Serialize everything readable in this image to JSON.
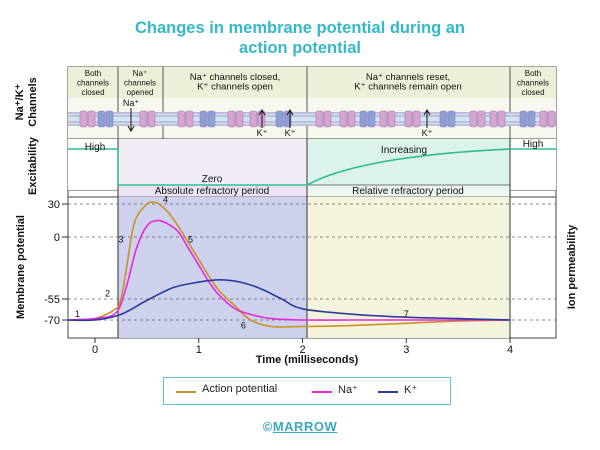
{
  "title": {
    "line1": "Changes in membrane potential during an",
    "line2": "action potential"
  },
  "rows": {
    "channels_label_1": "Na⁺/K⁺",
    "channels_label_2": "Channels",
    "excitability_label": "Excitability",
    "membrane_label": "Membrane potential",
    "ion_perm_label": "Ion permeability"
  },
  "channel_phases": [
    {
      "lines": [
        "Both",
        "channels",
        "closed"
      ]
    },
    {
      "lines": [
        "Na⁺",
        "channels",
        "opened"
      ]
    },
    {
      "lines": [
        "Na⁺ channels closed,",
        "K⁺ channels open"
      ]
    },
    {
      "lines": [
        "Na⁺ channels reset,",
        "K⁺ channels remain open"
      ]
    },
    {
      "lines": [
        "Both",
        "channels",
        "closed"
      ]
    }
  ],
  "ion_labels": {
    "na": "Na⁺",
    "k": "K⁺"
  },
  "excitability": {
    "high_left": "High",
    "zero": "Zero",
    "increasing": "Increasing",
    "high_right": "High",
    "absolute": "Absolute refractory period",
    "relative": "Relative refractory period"
  },
  "colors": {
    "title": "#35b8c9",
    "action_potential": "#c8922a",
    "na": "#e62ad8",
    "k": "#2e3b9c",
    "excitability_line": "#2fbf8f",
    "absolute_fill": "#cfd2ee",
    "relative_fill": "#f3f3dc",
    "excitability_high": "#ffffff",
    "excitability_zero_fill": "#f2ecf7",
    "excitability_incr_fill": "#ddf3ee",
    "channel_band": "#e9f1d4"
  },
  "chart_data": {
    "type": "line",
    "xlabel": "Time (milliseconds)",
    "x_ticks": [
      0,
      1,
      2,
      3,
      4
    ],
    "y_ticks": [
      30,
      0,
      -55,
      -70
    ],
    "xlim": [
      -0.25,
      4.45
    ],
    "ylim": [
      -82,
      38
    ],
    "series": [
      {
        "name": "Action potential",
        "x": [
          -0.3,
          0.0,
          0.2,
          0.25,
          0.3,
          0.35,
          0.4,
          0.5,
          0.55,
          0.6,
          0.7,
          0.8,
          0.9,
          1.0,
          1.1,
          1.2,
          1.35,
          1.5,
          1.7,
          2.0,
          2.5,
          3.0,
          3.5,
          4.0
        ],
        "y": [
          -70,
          -69,
          -62,
          -55,
          -30,
          0,
          18,
          30,
          32,
          31,
          23,
          10,
          -5,
          -20,
          -35,
          -48,
          -60,
          -70,
          -76,
          -76,
          -75,
          -73,
          -71,
          -70
        ]
      },
      {
        "name": "Na⁺",
        "x": [
          -0.3,
          0.0,
          0.2,
          0.3,
          0.4,
          0.5,
          0.6,
          0.7,
          0.8,
          0.9,
          1.0,
          1.1,
          1.2,
          1.35,
          1.5,
          1.7,
          2.0,
          2.5,
          3.0,
          4.0
        ],
        "y": [
          -70,
          -69,
          -65,
          -45,
          -10,
          10,
          15,
          12,
          5,
          -10,
          -25,
          -40,
          -52,
          -62,
          -66,
          -69,
          -70,
          -70,
          -70,
          -70
        ]
      },
      {
        "name": "K⁺",
        "x": [
          -0.3,
          0.0,
          0.25,
          0.5,
          0.75,
          1.0,
          1.2,
          1.4,
          1.6,
          1.8,
          2.0,
          2.5,
          3.0,
          3.5,
          4.0
        ],
        "y": [
          -70,
          -70,
          -66,
          -56,
          -45,
          -40,
          -38,
          -40,
          -46,
          -55,
          -62,
          -66,
          -68,
          -69,
          -70
        ]
      }
    ],
    "annotations": [
      {
        "label": "1",
        "x": -0.17,
        "y": -68
      },
      {
        "label": "2",
        "x": 0.12,
        "y": -53
      },
      {
        "label": "3",
        "x": 0.25,
        "y": -5
      },
      {
        "label": "4",
        "x": 0.68,
        "y": 32
      },
      {
        "label": "5",
        "x": 0.92,
        "y": -5
      },
      {
        "label": "6",
        "x": 1.43,
        "y": -78
      },
      {
        "label": "7",
        "x": 3.0,
        "y": -68
      }
    ],
    "regions": [
      {
        "name": "Absolute refractory period",
        "x": [
          0.23,
          2.0
        ]
      },
      {
        "name": "Relative refractory period",
        "x": [
          2.0,
          4.0
        ]
      }
    ]
  },
  "legend": {
    "ap": "Action potential",
    "na": "Na⁺",
    "k": "K⁺"
  },
  "footer": {
    "symbol": "©",
    "brand": "MARROW"
  }
}
